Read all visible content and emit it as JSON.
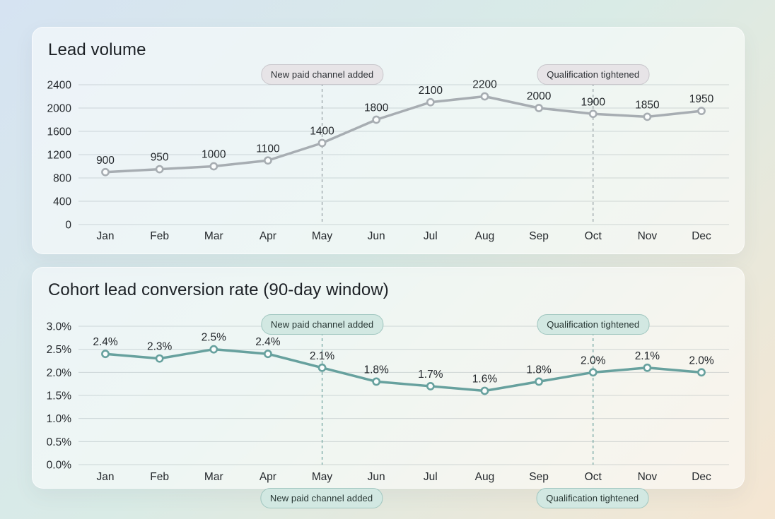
{
  "colors": {
    "background_gradient": [
      "#d6e3f2",
      "#d9ebe6",
      "#f5e6d2"
    ],
    "card_background": "rgba(255,255,255,0.55)",
    "grid_line": "rgba(125,140,145,0.30)",
    "tick_text": "#24282c",
    "title_text": "#1d2126",
    "chart1_line": "#a7adb2",
    "chart1_dash": "#9aa4a8",
    "chart2_line": "#67a19e",
    "chart2_dash": "#74a7a2",
    "marker_fill": "#fbfdfd",
    "pill_gray_bg": "#e7e4e7",
    "pill_gray_border": "#c8c6cb",
    "pill_teal_bg": "#d2e8e2",
    "pill_teal_border": "#9fc6bf"
  },
  "chart_data": [
    {
      "type": "line",
      "title": "Lead volume",
      "categories": [
        "Jan",
        "Feb",
        "Mar",
        "Apr",
        "May",
        "Jun",
        "Jul",
        "Aug",
        "Sep",
        "Oct",
        "Nov",
        "Dec"
      ],
      "values": [
        900,
        950,
        1000,
        1100,
        1400,
        1800,
        2100,
        2200,
        2000,
        1900,
        1850,
        1950
      ],
      "point_labels": [
        "900",
        "950",
        "1000",
        "1100",
        "1400",
        "1800",
        "2100",
        "2200",
        "2000",
        "1900",
        "1850",
        "1950"
      ],
      "xlabel": "",
      "ylabel": "",
      "ylim": [
        0,
        2400
      ],
      "yticks": [
        0,
        400,
        800,
        1200,
        1600,
        2000,
        2400
      ],
      "ytick_labels": [
        "0",
        "400",
        "800",
        "1200",
        "1600",
        "2000",
        "2400"
      ],
      "grid": true,
      "legend": "none",
      "line_color": "#a7adb2",
      "dash_color": "#9aa4a8",
      "annotation_style": "gray",
      "annotations": [
        {
          "label": "New paid channel added",
          "category": "May",
          "month_index": 4
        },
        {
          "label": "Qualification tightened",
          "category": "Oct",
          "month_index": 9
        }
      ]
    },
    {
      "type": "line",
      "title": "Cohort lead conversion rate (90-day window)",
      "categories": [
        "Jan",
        "Feb",
        "Mar",
        "Apr",
        "May",
        "Jun",
        "Jul",
        "Aug",
        "Sep",
        "Oct",
        "Nov",
        "Dec"
      ],
      "values": [
        2.4,
        2.3,
        2.5,
        2.4,
        2.1,
        1.8,
        1.7,
        1.6,
        1.8,
        2.0,
        2.1,
        2.0
      ],
      "point_labels": [
        "2.4%",
        "2.3%",
        "2.5%",
        "2.4%",
        "2.1%",
        "1.8%",
        "1.7%",
        "1.6%",
        "1.8%",
        "2.0%",
        "2.1%",
        "2.0%"
      ],
      "xlabel": "",
      "ylabel": "",
      "ylim": [
        0,
        3
      ],
      "yticks": [
        0,
        0.5,
        1.0,
        1.5,
        2.0,
        2.5,
        3.0
      ],
      "ytick_labels": [
        "0.0%",
        "0.5%",
        "1.0%",
        "1.5%",
        "2.0%",
        "2.5%",
        "3.0%"
      ],
      "grid": true,
      "legend": "none",
      "line_color": "#67a19e",
      "dash_color": "#74a7a2",
      "annotation_style": "teal",
      "annotations": [
        {
          "label": "New paid channel added",
          "category": "May",
          "month_index": 4
        },
        {
          "label": "Qualification tightened",
          "category": "Oct",
          "month_index": 9
        }
      ]
    }
  ],
  "footer_pills": [
    {
      "label": "New paid channel added",
      "month_index": 4
    },
    {
      "label": "Qualification tightened",
      "month_index": 9
    }
  ]
}
